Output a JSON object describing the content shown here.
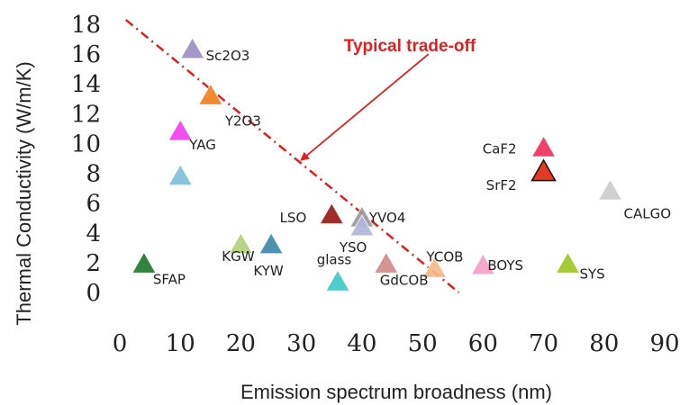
{
  "chart_data": {
    "type": "scatter",
    "xlabel": "Emission spectrum broadness (nm)",
    "ylabel": "Thermal Conductivity (W/m/K)",
    "xlim": [
      0,
      90
    ],
    "ylim": [
      0,
      18
    ],
    "x_ticks": [
      "0",
      "10",
      "20",
      "30",
      "40",
      "50",
      "60",
      "70",
      "80",
      "90"
    ],
    "y_ticks": [
      "0",
      "2",
      "4",
      "6",
      "8",
      "10",
      "12",
      "14",
      "16",
      "18"
    ],
    "grid": false,
    "annotation": {
      "text": "Typical trade-off",
      "color": "#e02020",
      "line_from": [
        1,
        18.3
      ],
      "line_to": [
        56,
        0
      ],
      "arrow_from": [
        51,
        16
      ],
      "arrow_to": [
        30,
        8.9
      ]
    },
    "points": [
      {
        "label": "Sc2O3",
        "x": 12,
        "y": 16.3,
        "color": "#9a8fc6"
      },
      {
        "label": "Y2O3",
        "x": 15,
        "y": 13.2,
        "color": "#f08020"
      },
      {
        "label": "YAG",
        "x": 10,
        "y": 10.8,
        "color": "#f040f0"
      },
      {
        "label": "",
        "x": 10,
        "y": 7.8,
        "color": "#7fbfd9"
      },
      {
        "label": "KGW",
        "x": 20,
        "y": 3.2,
        "color": "#b2cf7a"
      },
      {
        "label": "KYW",
        "x": 25,
        "y": 3.2,
        "color": "#3d8aa8"
      },
      {
        "label": "SFAP",
        "x": 4,
        "y": 1.9,
        "color": "#1e7a2a"
      },
      {
        "label": "LSO",
        "x": 35,
        "y": 5.2,
        "color": "#9a1a16"
      },
      {
        "label": "YVO4",
        "x": 40,
        "y": 5.0,
        "color": "#9a9a9a"
      },
      {
        "label": "YSO",
        "x": 40,
        "y": 4.4,
        "color": "#b3b3db"
      },
      {
        "label": "glass",
        "x": 36,
        "y": 0.7,
        "color": "#40c8c8"
      },
      {
        "label": "GdCOB",
        "x": 44,
        "y": 1.9,
        "color": "#d38a8a"
      },
      {
        "label": "YCOB",
        "x": 52,
        "y": 1.6,
        "color": "#f5b88a"
      },
      {
        "label": "BOYS",
        "x": 60,
        "y": 1.8,
        "color": "#f5a0c8"
      },
      {
        "label": "CaF2",
        "x": 70,
        "y": 9.7,
        "color": "#f03060"
      },
      {
        "label": "SrF2",
        "x": 70,
        "y": 8.1,
        "color": "#e02810"
      },
      {
        "label": "CALGO",
        "x": 81,
        "y": 6.8,
        "color": "#cccccc"
      },
      {
        "label": "SYS",
        "x": 74,
        "y": 1.9,
        "color": "#9ac820"
      }
    ]
  }
}
